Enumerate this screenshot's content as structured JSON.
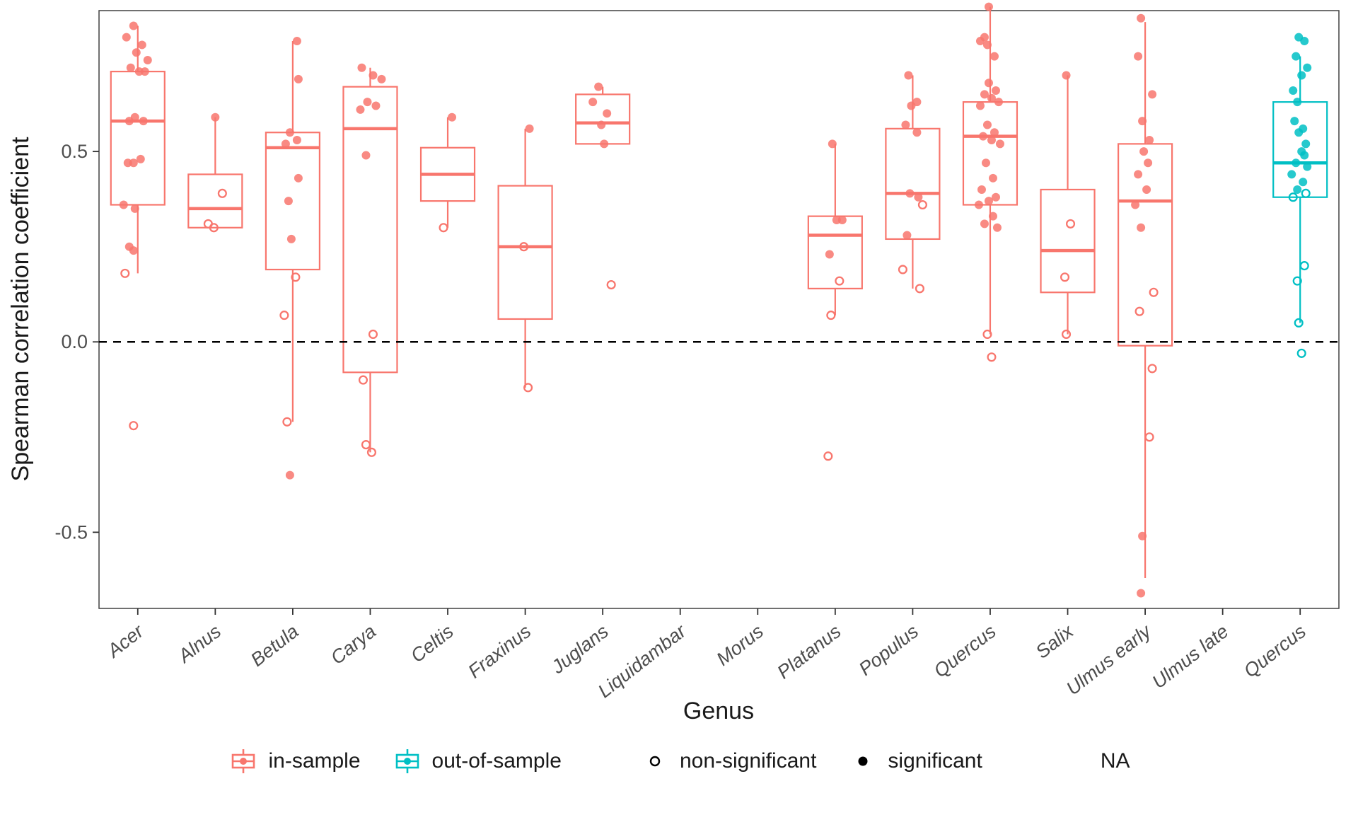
{
  "chart_data": {
    "type": "boxplot",
    "title": "",
    "xlabel": "Genus",
    "ylabel": "Spearman correlation coefficient",
    "ylim": [
      -0.7,
      0.87
    ],
    "yticks": [
      {
        "v": -0.5,
        "label": "-0.5"
      },
      {
        "v": 0.0,
        "label": "0.0"
      },
      {
        "v": 0.5,
        "label": "0.5"
      }
    ],
    "reference_line": 0.0,
    "grid": false,
    "legend_position": "bottom",
    "colors": {
      "in-sample": "#F8766D",
      "out-of-sample": "#00BFC4"
    },
    "point_format": [
      "value",
      "significant(1)/non-significant(0)",
      "jitter_px"
    ],
    "groups": [
      {
        "genus": "Acer",
        "sample": "in-sample",
        "box": {
          "q1": 0.36,
          "median": 0.58,
          "q3": 0.71,
          "whisker_low": 0.18,
          "whisker_high": 0.83
        },
        "points": [
          [
            0.83,
            1,
            -6
          ],
          [
            0.8,
            1,
            -16
          ],
          [
            0.78,
            1,
            6
          ],
          [
            0.76,
            1,
            -2
          ],
          [
            0.74,
            1,
            14
          ],
          [
            0.72,
            1,
            -10
          ],
          [
            0.71,
            1,
            2
          ],
          [
            0.71,
            1,
            10
          ],
          [
            0.59,
            1,
            -4
          ],
          [
            0.58,
            1,
            8
          ],
          [
            0.58,
            1,
            -12
          ],
          [
            0.48,
            1,
            4
          ],
          [
            0.47,
            1,
            -14
          ],
          [
            0.47,
            1,
            -6
          ],
          [
            0.36,
            1,
            -20
          ],
          [
            0.35,
            1,
            -4
          ],
          [
            0.25,
            1,
            -12
          ],
          [
            0.24,
            1,
            -6
          ],
          [
            0.18,
            0,
            -18
          ],
          [
            -0.22,
            0,
            -6
          ]
        ]
      },
      {
        "genus": "Alnus",
        "sample": "in-sample",
        "box": {
          "q1": 0.3,
          "median": 0.35,
          "q3": 0.44,
          "whisker_low": 0.3,
          "whisker_high": 0.59
        },
        "points": [
          [
            0.59,
            1,
            0
          ],
          [
            0.39,
            0,
            10
          ],
          [
            0.31,
            0,
            -10
          ],
          [
            0.3,
            0,
            -2
          ]
        ]
      },
      {
        "genus": "Betula",
        "sample": "in-sample",
        "box": {
          "q1": 0.19,
          "median": 0.51,
          "q3": 0.55,
          "whisker_low": -0.21,
          "whisker_high": 0.79
        },
        "points": [
          [
            0.79,
            1,
            6
          ],
          [
            0.69,
            1,
            8
          ],
          [
            0.55,
            1,
            -4
          ],
          [
            0.53,
            1,
            6
          ],
          [
            0.52,
            1,
            -10
          ],
          [
            0.43,
            1,
            8
          ],
          [
            0.37,
            1,
            -6
          ],
          [
            0.27,
            1,
            -2
          ],
          [
            0.17,
            0,
            4
          ],
          [
            0.07,
            0,
            -12
          ],
          [
            -0.21,
            0,
            -8
          ],
          [
            -0.35,
            1,
            -4
          ]
        ]
      },
      {
        "genus": "Carya",
        "sample": "in-sample",
        "box": {
          "q1": -0.08,
          "median": 0.56,
          "q3": 0.67,
          "whisker_low": -0.29,
          "whisker_high": 0.72
        },
        "points": [
          [
            0.72,
            1,
            -12
          ],
          [
            0.7,
            1,
            4
          ],
          [
            0.69,
            1,
            16
          ],
          [
            0.63,
            1,
            -4
          ],
          [
            0.62,
            1,
            8
          ],
          [
            0.61,
            1,
            -14
          ],
          [
            0.49,
            1,
            -6
          ],
          [
            0.02,
            0,
            4
          ],
          [
            -0.1,
            0,
            -10
          ],
          [
            -0.27,
            0,
            -6
          ],
          [
            -0.29,
            0,
            2
          ]
        ]
      },
      {
        "genus": "Celtis",
        "sample": "in-sample",
        "box": {
          "q1": 0.37,
          "median": 0.44,
          "q3": 0.51,
          "whisker_low": 0.3,
          "whisker_high": 0.59
        },
        "points": [
          [
            0.59,
            1,
            6
          ],
          [
            0.3,
            0,
            -6
          ]
        ]
      },
      {
        "genus": "Fraxinus",
        "sample": "in-sample",
        "box": {
          "q1": 0.06,
          "median": 0.25,
          "q3": 0.41,
          "whisker_low": -0.12,
          "whisker_high": 0.56
        },
        "points": [
          [
            0.56,
            1,
            6
          ],
          [
            0.25,
            0,
            -2
          ],
          [
            -0.12,
            0,
            4
          ]
        ]
      },
      {
        "genus": "Juglans",
        "sample": "in-sample",
        "box": {
          "q1": 0.52,
          "median": 0.575,
          "q3": 0.65,
          "whisker_low": 0.52,
          "whisker_high": 0.67
        },
        "points": [
          [
            0.67,
            1,
            -6
          ],
          [
            0.63,
            1,
            -14
          ],
          [
            0.6,
            1,
            6
          ],
          [
            0.57,
            1,
            -2
          ],
          [
            0.52,
            1,
            2
          ],
          [
            0.15,
            0,
            12
          ]
        ]
      },
      {
        "genus": "Liquidambar",
        "sample": "in-sample",
        "box": null,
        "points": []
      },
      {
        "genus": "Morus",
        "sample": "in-sample",
        "box": null,
        "points": []
      },
      {
        "genus": "Platanus",
        "sample": "in-sample",
        "box": {
          "q1": 0.14,
          "median": 0.28,
          "q3": 0.33,
          "whisker_low": 0.07,
          "whisker_high": 0.52
        },
        "points": [
          [
            0.52,
            1,
            -4
          ],
          [
            0.32,
            1,
            2
          ],
          [
            0.32,
            1,
            10
          ],
          [
            0.23,
            1,
            -8
          ],
          [
            0.16,
            0,
            6
          ],
          [
            0.07,
            0,
            -6
          ],
          [
            -0.3,
            0,
            -10
          ]
        ]
      },
      {
        "genus": "Populus",
        "sample": "in-sample",
        "box": {
          "q1": 0.27,
          "median": 0.39,
          "q3": 0.56,
          "whisker_low": 0.14,
          "whisker_high": 0.7
        },
        "points": [
          [
            0.7,
            1,
            -6
          ],
          [
            0.63,
            1,
            6
          ],
          [
            0.62,
            1,
            -2
          ],
          [
            0.57,
            1,
            -10
          ],
          [
            0.55,
            1,
            6
          ],
          [
            0.39,
            1,
            -4
          ],
          [
            0.38,
            1,
            8
          ],
          [
            0.36,
            0,
            14
          ],
          [
            0.28,
            1,
            -8
          ],
          [
            0.19,
            0,
            -14
          ],
          [
            0.14,
            0,
            10
          ]
        ]
      },
      {
        "genus": "Quercus",
        "sample": "in-sample",
        "box": {
          "q1": 0.36,
          "median": 0.54,
          "q3": 0.63,
          "whisker_low": 0.02,
          "whisker_high": 0.88
        },
        "points": [
          [
            0.88,
            1,
            -2
          ],
          [
            0.8,
            1,
            -8
          ],
          [
            0.79,
            1,
            -14
          ],
          [
            0.78,
            1,
            -4
          ],
          [
            0.75,
            1,
            6
          ],
          [
            0.68,
            1,
            -2
          ],
          [
            0.66,
            1,
            8
          ],
          [
            0.65,
            1,
            -8
          ],
          [
            0.64,
            1,
            2
          ],
          [
            0.63,
            1,
            12
          ],
          [
            0.62,
            1,
            -14
          ],
          [
            0.57,
            1,
            -4
          ],
          [
            0.55,
            1,
            6
          ],
          [
            0.54,
            1,
            -10
          ],
          [
            0.53,
            1,
            2
          ],
          [
            0.52,
            1,
            14
          ],
          [
            0.47,
            1,
            -6
          ],
          [
            0.43,
            1,
            4
          ],
          [
            0.4,
            1,
            -12
          ],
          [
            0.38,
            1,
            8
          ],
          [
            0.37,
            1,
            -2
          ],
          [
            0.36,
            1,
            -16
          ],
          [
            0.33,
            1,
            4
          ],
          [
            0.31,
            1,
            -8
          ],
          [
            0.3,
            1,
            10
          ],
          [
            0.02,
            0,
            -4
          ],
          [
            -0.04,
            0,
            2
          ]
        ]
      },
      {
        "genus": "Salix",
        "sample": "in-sample",
        "box": {
          "q1": 0.13,
          "median": 0.24,
          "q3": 0.4,
          "whisker_low": 0.02,
          "whisker_high": 0.7
        },
        "points": [
          [
            0.7,
            1,
            -2
          ],
          [
            0.31,
            0,
            4
          ],
          [
            0.17,
            0,
            -4
          ],
          [
            0.02,
            0,
            -2
          ]
        ]
      },
      {
        "genus": "Ulmus early",
        "sample": "in-sample",
        "box": {
          "q1": -0.01,
          "median": 0.37,
          "q3": 0.52,
          "whisker_low": -0.62,
          "whisker_high": 0.84
        },
        "points": [
          [
            0.85,
            1,
            -6
          ],
          [
            0.75,
            1,
            -10
          ],
          [
            0.65,
            1,
            10
          ],
          [
            0.58,
            1,
            -4
          ],
          [
            0.53,
            1,
            6
          ],
          [
            0.5,
            1,
            -2
          ],
          [
            0.47,
            1,
            4
          ],
          [
            0.44,
            1,
            -10
          ],
          [
            0.4,
            1,
            2
          ],
          [
            0.36,
            1,
            -14
          ],
          [
            0.3,
            1,
            -6
          ],
          [
            0.13,
            0,
            12
          ],
          [
            0.08,
            0,
            -8
          ],
          [
            -0.07,
            0,
            10
          ],
          [
            -0.25,
            0,
            6
          ],
          [
            -0.51,
            1,
            -4
          ],
          [
            -0.66,
            1,
            -6
          ]
        ]
      },
      {
        "genus": "Ulmus late",
        "sample": "in-sample",
        "box": null,
        "points": []
      },
      {
        "genus": "Quercus",
        "sample": "out-of-sample",
        "box": {
          "q1": 0.38,
          "median": 0.47,
          "q3": 0.63,
          "whisker_low": 0.05,
          "whisker_high": 0.75
        },
        "points": [
          [
            0.8,
            1,
            -2
          ],
          [
            0.79,
            1,
            6
          ],
          [
            0.75,
            1,
            -6
          ],
          [
            0.72,
            1,
            10
          ],
          [
            0.7,
            1,
            2
          ],
          [
            0.66,
            1,
            -10
          ],
          [
            0.63,
            1,
            -4
          ],
          [
            0.58,
            1,
            -8
          ],
          [
            0.56,
            1,
            4
          ],
          [
            0.55,
            1,
            -2
          ],
          [
            0.52,
            1,
            8
          ],
          [
            0.5,
            1,
            2
          ],
          [
            0.49,
            1,
            6
          ],
          [
            0.47,
            1,
            -6
          ],
          [
            0.46,
            1,
            10
          ],
          [
            0.44,
            1,
            -12
          ],
          [
            0.42,
            1,
            4
          ],
          [
            0.4,
            1,
            -4
          ],
          [
            0.39,
            0,
            8
          ],
          [
            0.38,
            0,
            -10
          ],
          [
            0.2,
            0,
            6
          ],
          [
            0.16,
            0,
            -4
          ],
          [
            0.05,
            0,
            -2
          ],
          [
            -0.03,
            0,
            2
          ]
        ]
      }
    ]
  },
  "legend": {
    "items": [
      {
        "label": "in-sample",
        "key": "boxplot",
        "color": "#F8766D"
      },
      {
        "label": "out-of-sample",
        "key": "boxplot",
        "color": "#00BFC4"
      },
      {
        "label": "non-significant",
        "key": "open-circle",
        "color": "#000000"
      },
      {
        "label": "significant",
        "key": "filled-circle",
        "color": "#000000"
      },
      {
        "label": "NA",
        "key": "none",
        "color": ""
      }
    ]
  }
}
